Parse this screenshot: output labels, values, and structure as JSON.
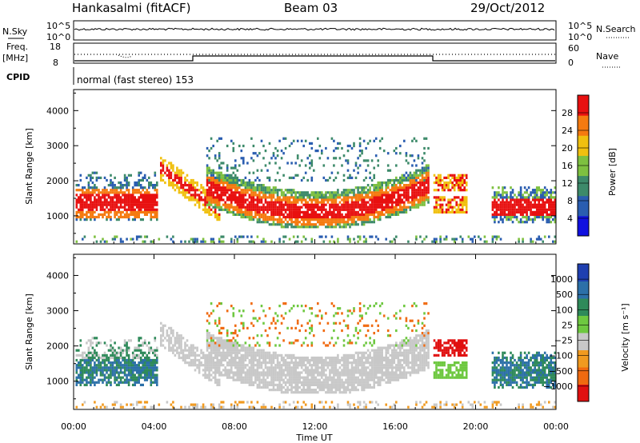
{
  "header": {
    "station": "Hankasalmi (fitACF)",
    "beam": "Beam 03",
    "date": "29/Oct/2012"
  },
  "status_panel": {
    "nsky_label": "N.Sky",
    "nsky_ticks": [
      "10^5",
      "10^0"
    ],
    "nsearch_label": "N.Search",
    "nsearch_ticks": [
      "10^5",
      "10^0"
    ],
    "freq_label_1": "Freq.",
    "freq_label_2": "[MHz]",
    "freq_ticks": [
      "18",
      "8"
    ],
    "nave_label": "Nave",
    "nave_ticks": [
      "60",
      "0"
    ],
    "cpid_label": "CPID",
    "cpid_text": "normal (fast stereo) 153"
  },
  "chart_data": [
    {
      "type": "heatmap",
      "name": "power",
      "ylabel": "Slant Range [km]",
      "yticks": [
        "4000",
        "3000",
        "2000",
        "1000"
      ],
      "ylim": [
        200,
        4600
      ],
      "colorbar_label": "Power [dB]",
      "colorbar_ticks": [
        "28",
        "24",
        "20",
        "16",
        "12",
        "8",
        "4"
      ],
      "colors": [
        "#1010e0",
        "#2a5db0",
        "#3d8a6a",
        "#7ec040",
        "#f0c010",
        "#f57a10",
        "#e81010"
      ]
    },
    {
      "type": "heatmap",
      "name": "velocity",
      "ylabel": "Slant Range [km]",
      "yticks": [
        "4000",
        "3000",
        "2000",
        "1000"
      ],
      "ylim": [
        200,
        4600
      ],
      "colorbar_label": "Velocity [m s⁻¹]",
      "colorbar_ticks": [
        "1000",
        "500",
        "100",
        "25",
        "−25",
        "−100",
        "−500",
        "−1000"
      ],
      "colors": [
        "#1f3fb0",
        "#2c70a8",
        "#2f8a5a",
        "#6ec840",
        "#c8c8c8",
        "#f09a20",
        "#f06a10",
        "#e01010"
      ]
    }
  ],
  "x_axis": {
    "ticks": [
      "00:00",
      "04:00",
      "08:00",
      "12:00",
      "16:00",
      "20:00",
      "00:00"
    ],
    "label": "Time UT"
  }
}
